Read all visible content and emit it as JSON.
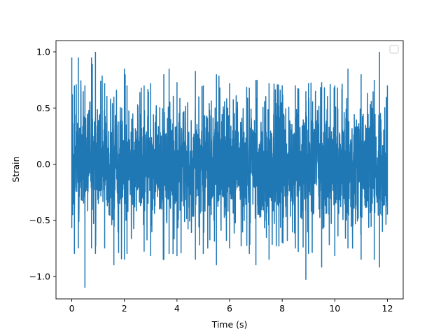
{
  "chart_data": {
    "type": "line",
    "title": "",
    "xlabel": "Time (s)",
    "ylabel": "Strain",
    "xlim": [
      -0.6,
      12.6
    ],
    "ylim": [
      -1.2,
      1.1
    ],
    "xticks": [
      0,
      2,
      4,
      6,
      8,
      10,
      12
    ],
    "xtick_labels": [
      "0",
      "2",
      "4",
      "6",
      "8",
      "10",
      "12"
    ],
    "yticks": [
      -1.0,
      -0.5,
      0.0,
      0.5,
      1.0
    ],
    "ytick_labels": [
      "−1.0",
      "−0.5",
      "0.0",
      "0.5",
      "1.0"
    ],
    "grid": false,
    "legend": {
      "placement": "top-right",
      "entries": []
    },
    "series": [
      {
        "color": "#1f77b4",
        "x_start": 0.0,
        "x_end": 12.0,
        "envelope": {
          "x": [
            0.0,
            0.1,
            0.25,
            0.5,
            0.75,
            0.9,
            1.25,
            1.6,
            2.0,
            2.1,
            2.75,
            3.0,
            3.5,
            3.7,
            4.0,
            4.7,
            5.0,
            5.5,
            6.0,
            6.75,
            7.0,
            7.5,
            8.0,
            8.5,
            8.9,
            9.0,
            9.5,
            10.0,
            10.5,
            11.0,
            11.5,
            11.7,
            12.0
          ],
          "upper": [
            0.95,
            0.7,
            0.95,
            0.7,
            0.95,
            1.0,
            0.72,
            0.6,
            0.85,
            0.7,
            0.7,
            0.72,
            0.8,
            0.85,
            0.73,
            0.83,
            0.7,
            0.8,
            0.72,
            0.68,
            0.75,
            0.72,
            0.7,
            0.7,
            0.65,
            0.72,
            0.73,
            0.7,
            0.85,
            0.8,
            0.75,
            1.0,
            0.7
          ],
          "lower": [
            -0.57,
            -0.8,
            -0.75,
            -1.1,
            -0.75,
            -0.8,
            -0.75,
            -0.9,
            -0.85,
            -0.8,
            -0.78,
            -0.82,
            -0.85,
            -0.8,
            -0.82,
            -0.85,
            -0.8,
            -0.9,
            -0.75,
            -0.8,
            -0.9,
            -0.85,
            -0.7,
            -0.75,
            -1.03,
            -0.8,
            -0.92,
            -0.82,
            -0.75,
            -0.85,
            -0.85,
            -0.92,
            -0.45
          ]
        }
      }
    ]
  }
}
